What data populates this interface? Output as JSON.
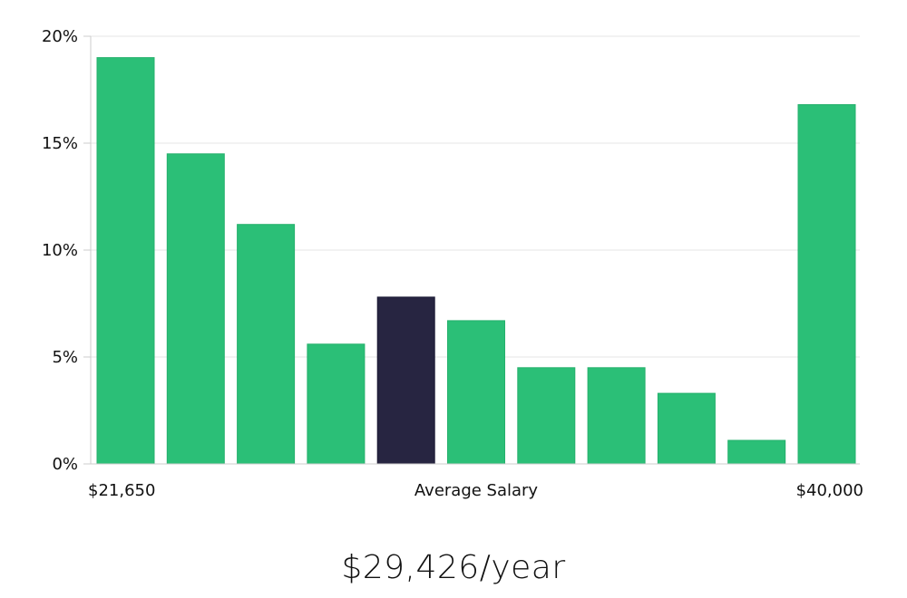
{
  "chart_data": {
    "type": "bar",
    "title": "",
    "xlabel": "Average Salary",
    "ylabel": "",
    "x_range_labels": {
      "min": "$21,650",
      "max": "$40,000"
    },
    "ylim": [
      0,
      20
    ],
    "yticks": [
      0,
      5,
      10,
      15,
      20
    ],
    "ytick_labels": [
      "0%",
      "5%",
      "10%",
      "15%",
      "20%"
    ],
    "grid": true,
    "values": [
      19.0,
      14.5,
      11.2,
      5.6,
      7.8,
      6.7,
      4.5,
      4.5,
      3.3,
      1.1,
      16.8
    ],
    "highlight_index": 4,
    "colors": {
      "bar": "#2bbf77",
      "highlight": "#272541",
      "grid": "#e6e6e6",
      "axis": "#cccccc"
    }
  },
  "summary": {
    "average_salary": "$29,426/year"
  }
}
